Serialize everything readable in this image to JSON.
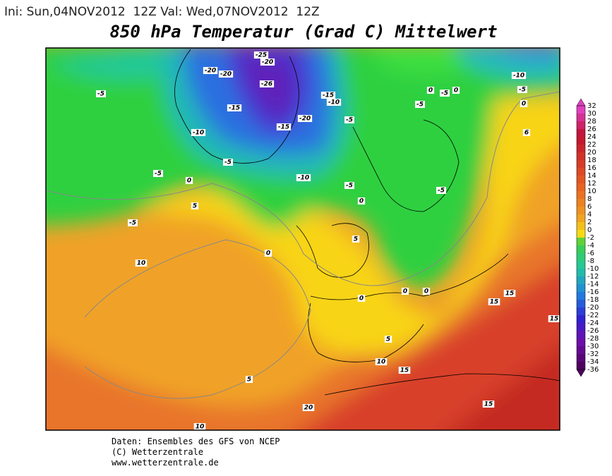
{
  "header": {
    "run_info": "Ini: Sun,04NOV2012  12Z Val: Wed,07NOV2012  12Z",
    "title": "850 hPa Temperatur (Grad C) Mittelwert"
  },
  "map": {
    "contour_labels": [
      "-25",
      "-20",
      "-20",
      "-20",
      "-10",
      "-5",
      "-26",
      "-15",
      "-10",
      "0",
      "-5",
      "0",
      "-5",
      "-5",
      "0",
      "-15",
      "-20",
      "-5",
      "-15",
      "-10",
      "6",
      "-5",
      "-5",
      "0",
      "-10",
      "-5",
      "-5",
      "5",
      "0",
      "-5",
      "5",
      "0",
      "10",
      "15",
      "0",
      "0",
      "0",
      "15",
      "15",
      "5",
      "10",
      "15",
      "5",
      "20",
      "15",
      "10"
    ]
  },
  "colorbar": {
    "labels": [
      "32",
      "30",
      "28",
      "26",
      "24",
      "22",
      "20",
      "18",
      "16",
      "14",
      "12",
      "10",
      "8",
      "6",
      "4",
      "2",
      "0",
      "-2",
      "-4",
      "-6",
      "-8",
      "-10",
      "-12",
      "-14",
      "-16",
      "-18",
      "-20",
      "-22",
      "-24",
      "-26",
      "-28",
      "-30",
      "-32",
      "-34",
      "-36"
    ]
  },
  "footer": {
    "lines": [
      "Daten: Ensembles des GFS von NCEP",
      "(C) Wetterzentrale",
      "www.wetterzentrale.de"
    ]
  }
}
